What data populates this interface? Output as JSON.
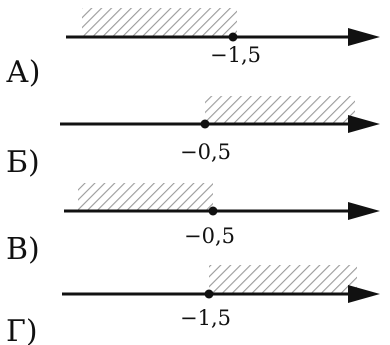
{
  "options": [
    {
      "letter": "А)",
      "point_label": "−1,5",
      "shaded": "left"
    },
    {
      "letter": "Б)",
      "point_label": "−0,5",
      "shaded": "right"
    },
    {
      "letter": "В)",
      "point_label": "−0,5",
      "shaded": "left"
    },
    {
      "letter": "Г)",
      "point_label": "−1,5",
      "shaded": "right"
    }
  ]
}
